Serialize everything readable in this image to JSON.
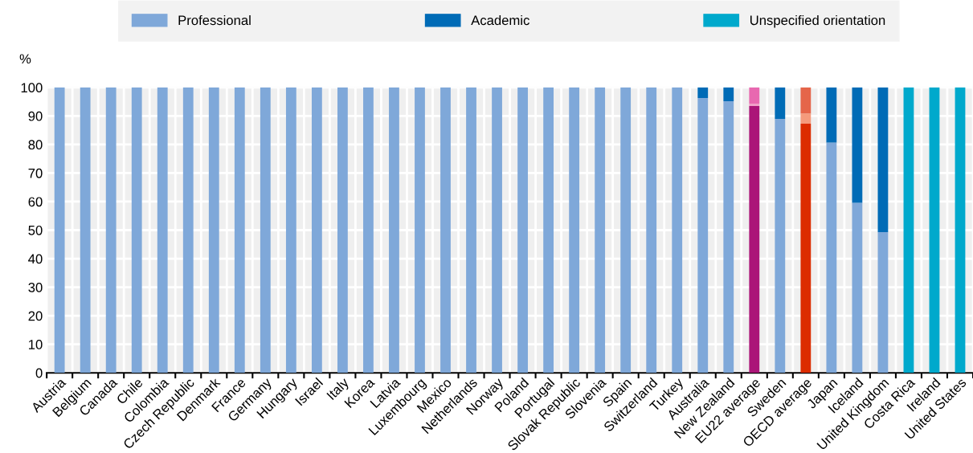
{
  "chart_data": {
    "type": "bar",
    "stacked": true,
    "ylabel": "%",
    "ylim": [
      0,
      100
    ],
    "yticks": [
      0,
      10,
      20,
      30,
      40,
      50,
      60,
      70,
      80,
      90,
      100
    ],
    "grid": true,
    "legend": "top",
    "categories": [
      "Austria",
      "Belgium",
      "Canada",
      "Chile",
      "Colombia",
      "Czech Republic",
      "Denmark",
      "France",
      "Germany",
      "Hungary",
      "Israel",
      "Italy",
      "Korea",
      "Latvia",
      "Luxembourg",
      "Mexico",
      "Netherlands",
      "Norway",
      "Poland",
      "Portugal",
      "Slovak Republic",
      "Slovenia",
      "Spain",
      "Switzerland",
      "Turkey",
      "Australia",
      "New Zealand",
      "EU22 average",
      "Sweden",
      "OECD average",
      "Japan",
      "Iceland",
      "United Kingdom",
      "Costa Rica",
      "Ireland",
      "United States"
    ],
    "series": [
      {
        "name": "Professional",
        "color": "#7fa8d9",
        "colors": [
          "#7fa8d9",
          "#7fa8d9",
          "#7fa8d9",
          "#7fa8d9",
          "#7fa8d9",
          "#7fa8d9",
          "#7fa8d9",
          "#7fa8d9",
          "#7fa8d9",
          "#7fa8d9",
          "#7fa8d9",
          "#7fa8d9",
          "#7fa8d9",
          "#7fa8d9",
          "#7fa8d9",
          "#7fa8d9",
          "#7fa8d9",
          "#7fa8d9",
          "#7fa8d9",
          "#7fa8d9",
          "#7fa8d9",
          "#7fa8d9",
          "#7fa8d9",
          "#7fa8d9",
          "#7fa8d9",
          "#7fa8d9",
          "#7fa8d9",
          "#ab1578",
          "#7fa8d9",
          "#dc2c00",
          "#7fa8d9",
          "#7fa8d9",
          "#7fa8d9",
          "#7fa8d9",
          "#7fa8d9",
          "#7fa8d9"
        ],
        "values": [
          100,
          100,
          100,
          100,
          100,
          100,
          100,
          100,
          100,
          100,
          100,
          100,
          100,
          100,
          100,
          100,
          100,
          100,
          100,
          100,
          100,
          100,
          100,
          100,
          100,
          96.3,
          95.2,
          93.5,
          89.0,
          87.3,
          80.7,
          59.6,
          49.3,
          0,
          0,
          0
        ]
      },
      {
        "name": "Academic",
        "color": "#006bb6",
        "colors": [
          "#006bb6",
          "#006bb6",
          "#006bb6",
          "#006bb6",
          "#006bb6",
          "#006bb6",
          "#006bb6",
          "#006bb6",
          "#006bb6",
          "#006bb6",
          "#006bb6",
          "#006bb6",
          "#006bb6",
          "#006bb6",
          "#006bb6",
          "#006bb6",
          "#006bb6",
          "#006bb6",
          "#006bb6",
          "#006bb6",
          "#006bb6",
          "#006bb6",
          "#006bb6",
          "#006bb6",
          "#006bb6",
          "#006bb6",
          "#006bb6",
          "#f0a0c8",
          "#006bb6",
          "#f59a7c",
          "#006bb6",
          "#006bb6",
          "#006bb6",
          "#006bb6",
          "#006bb6",
          "#006bb6"
        ],
        "values": [
          0,
          0,
          0,
          0,
          0,
          0,
          0,
          0,
          0,
          0,
          0,
          0,
          0,
          0,
          0,
          0,
          0,
          0,
          0,
          0,
          0,
          0,
          0,
          0,
          0,
          3.7,
          4.8,
          0.8,
          11.0,
          3.6,
          19.3,
          40.4,
          50.7,
          0,
          0,
          0
        ]
      },
      {
        "name": "Unspecified orientation",
        "color": "#00a9cc",
        "colors": [
          "#00a9cc",
          "#00a9cc",
          "#00a9cc",
          "#00a9cc",
          "#00a9cc",
          "#00a9cc",
          "#00a9cc",
          "#00a9cc",
          "#00a9cc",
          "#00a9cc",
          "#00a9cc",
          "#00a9cc",
          "#00a9cc",
          "#00a9cc",
          "#00a9cc",
          "#00a9cc",
          "#00a9cc",
          "#00a9cc",
          "#00a9cc",
          "#00a9cc",
          "#00a9cc",
          "#00a9cc",
          "#00a9cc",
          "#00a9cc",
          "#00a9cc",
          "#00a9cc",
          "#00a9cc",
          "#e868b0",
          "#00a9cc",
          "#e5654a",
          "#00a9cc",
          "#00a9cc",
          "#00a9cc",
          "#00a9cc",
          "#00a9cc",
          "#00a9cc"
        ],
        "values": [
          0,
          0,
          0,
          0,
          0,
          0,
          0,
          0,
          0,
          0,
          0,
          0,
          0,
          0,
          0,
          0,
          0,
          0,
          0,
          0,
          0,
          0,
          0,
          0,
          0,
          0,
          0,
          5.7,
          0,
          9.1,
          0,
          0,
          0,
          100,
          100,
          100
        ]
      }
    ]
  }
}
